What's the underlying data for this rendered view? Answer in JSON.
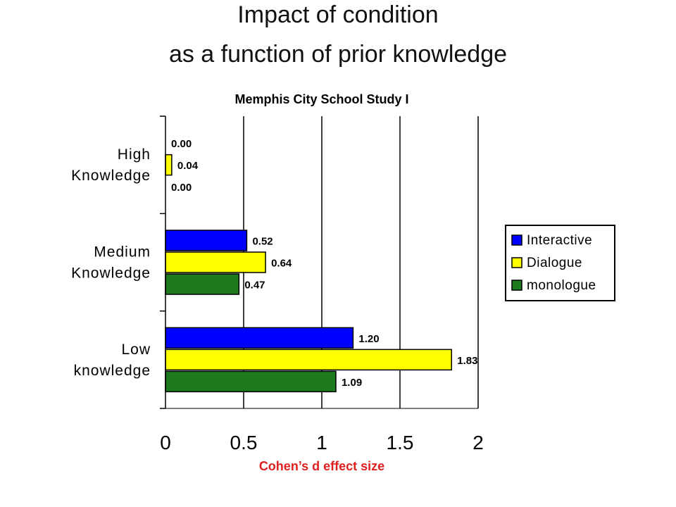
{
  "slide": {
    "title_line1": "Impact of condition",
    "title_line2": "as a function of prior knowledge"
  },
  "chart_data": {
    "type": "bar",
    "orientation": "horizontal",
    "title": "Memphis City School Study I",
    "xlabel": "Cohen’s d effect size",
    "ylabel": "",
    "categories": [
      "Low\nknowledge",
      "Medium\nKnowledge",
      "High\nKnowledge"
    ],
    "series": [
      {
        "name": "Interactive",
        "color": "#0000ff",
        "values": [
          1.2,
          0.52,
          0.0
        ],
        "labels": [
          "1.20",
          "0.52",
          "0.00"
        ]
      },
      {
        "name": "Dialogue",
        "color": "#ffff00",
        "values": [
          1.83,
          0.64,
          0.04
        ],
        "labels": [
          "1.83",
          "0.64",
          "0.04"
        ]
      },
      {
        "name": "monologue",
        "color": "#1e7a1e",
        "values": [
          1.09,
          0.47,
          0.0
        ],
        "labels": [
          "1.09",
          "0.47",
          "0.00"
        ]
      }
    ],
    "xlim": [
      0,
      2
    ],
    "xticks": [
      "0",
      "0.5",
      "1",
      "1.5",
      "2"
    ],
    "grid": "vertical",
    "legend_position": "right",
    "xlabel_color": "#e02020"
  }
}
